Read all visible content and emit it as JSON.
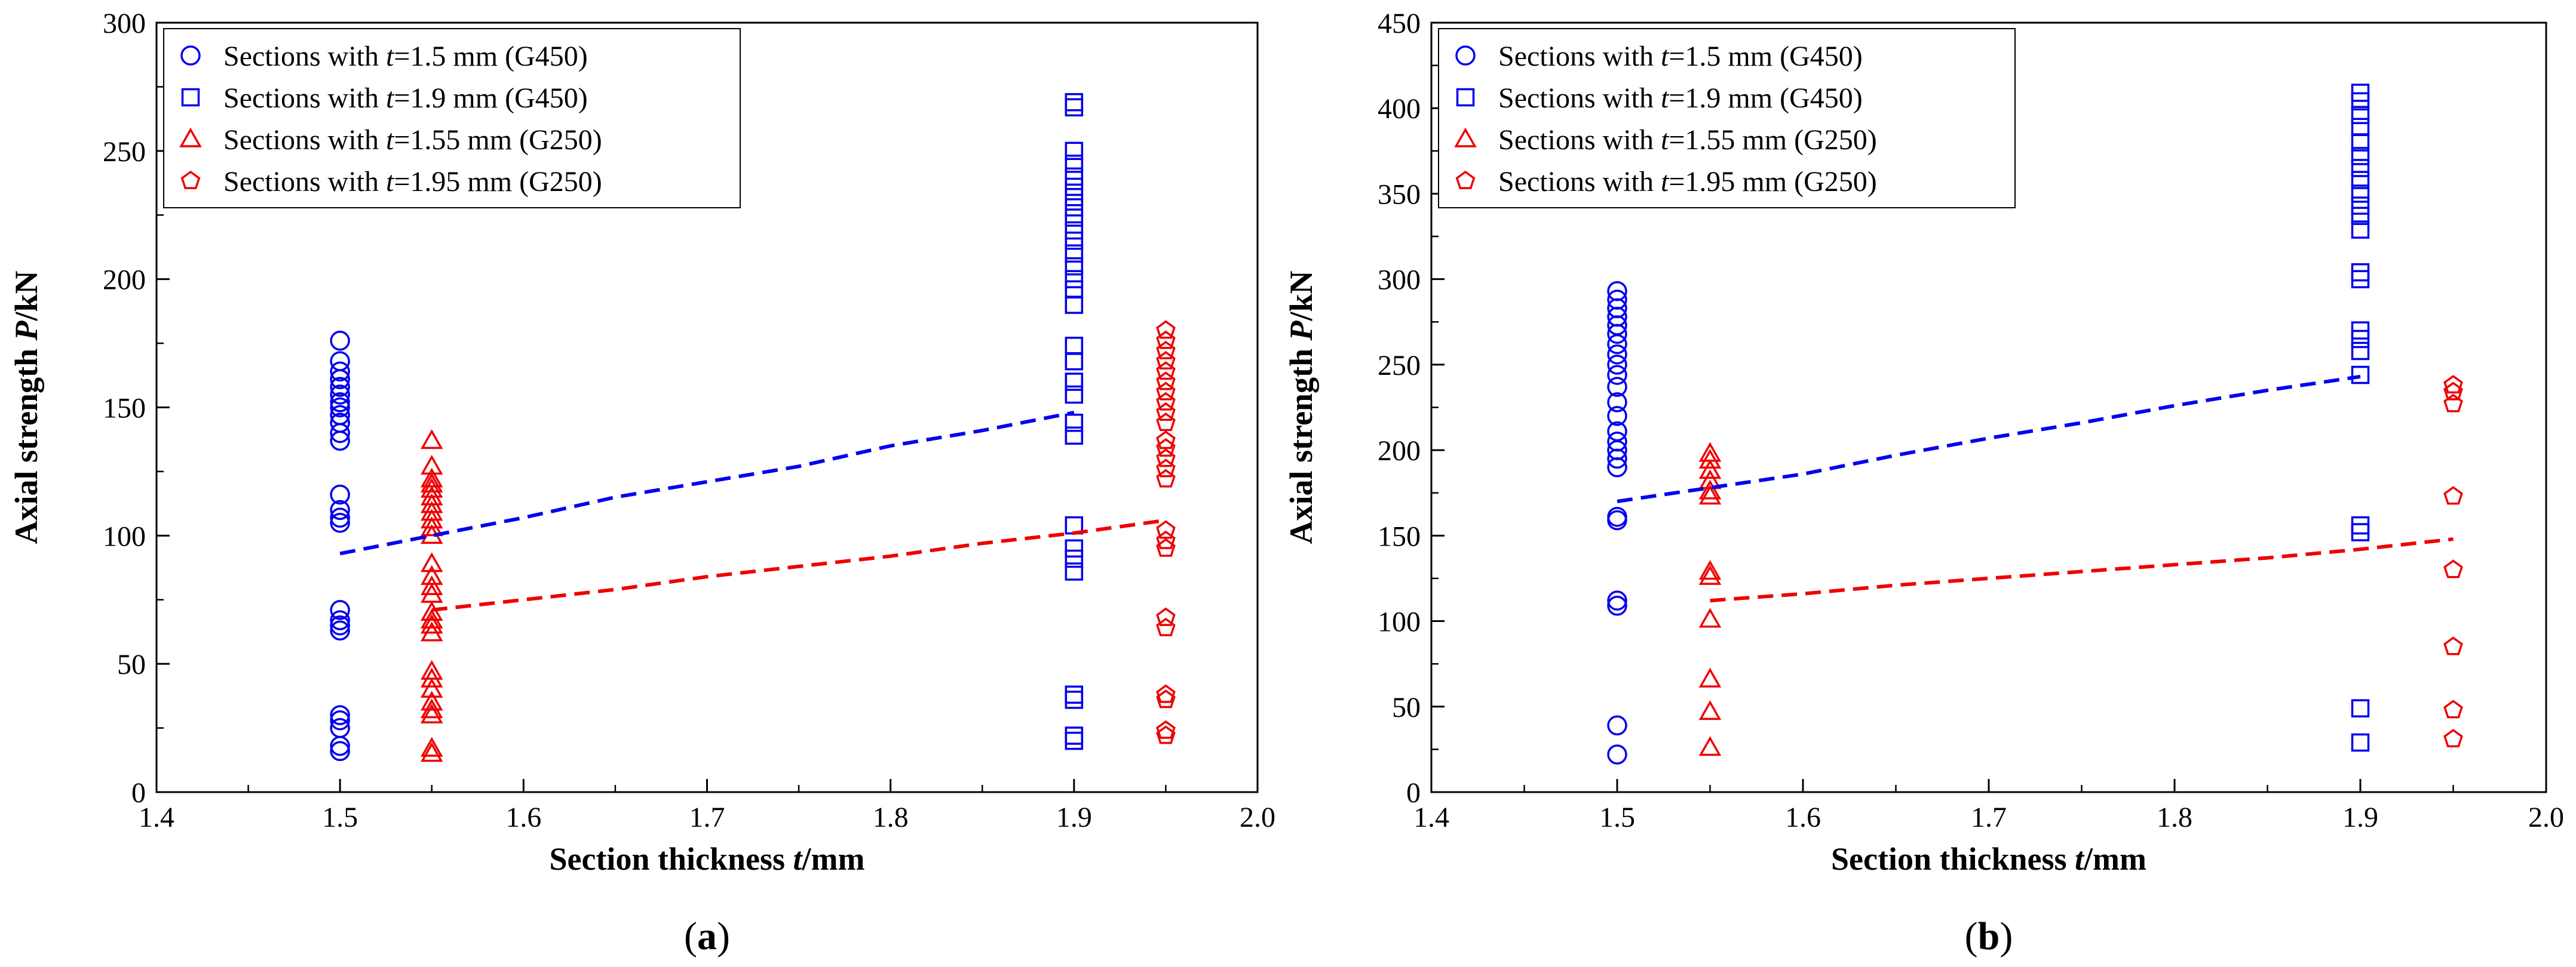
{
  "figure": {
    "colors": {
      "g450": "#0000ee",
      "g250": "#ee0000",
      "axis": "#000000"
    }
  },
  "chart_data": [
    {
      "type": "scatter",
      "panel_label": {
        "pre": "(",
        "letter": "a",
        "post": ")"
      },
      "xlabel": {
        "main": "Section thickness ",
        "var": "t",
        "unit": "/mm"
      },
      "ylabel": {
        "main": "Axial strength ",
        "var": "P",
        "unit": "/kN"
      },
      "xlim": [
        1.4,
        2.0
      ],
      "ylim": [
        0,
        300
      ],
      "xticks": [
        1.4,
        1.5,
        1.6,
        1.7,
        1.8,
        1.9,
        2.0
      ],
      "xtick_labels": [
        "1.4",
        "1.5",
        "1.6",
        "1.7",
        "1.8",
        "1.9",
        "2.0"
      ],
      "yticks": [
        0,
        50,
        100,
        150,
        200,
        250,
        300
      ],
      "ytick_labels": [
        "0",
        "50",
        "100",
        "150",
        "200",
        "250",
        "300"
      ],
      "grid": false,
      "legend_position": "top-left",
      "series": [
        {
          "name": "Sections with t=1.5 mm (G450)",
          "legend_pre": "Sections with ",
          "legend_var": "t",
          "legend_post": "=1.5 mm (G450)",
          "marker": "circle",
          "color": "#0000ee",
          "x": 1.5,
          "values": [
            176,
            168,
            164,
            161,
            158,
            155,
            152,
            150,
            147,
            144,
            140,
            137,
            116,
            110,
            107,
            105,
            71,
            67,
            65,
            63,
            30,
            28,
            25,
            18,
            16
          ]
        },
        {
          "name": "Sections with t=1.9 mm (G450)",
          "legend_pre": "Sections with ",
          "legend_var": "t",
          "legend_post": "=1.9 mm (G450)",
          "marker": "square",
          "color": "#0000ee",
          "x": 1.9,
          "values": [
            269,
            267,
            250,
            245,
            240,
            236,
            232,
            228,
            224,
            219,
            215,
            210,
            205,
            200,
            196,
            190,
            174,
            168,
            160,
            155,
            144,
            139,
            104,
            95,
            91,
            86,
            38,
            36,
            22,
            20
          ]
        },
        {
          "name": "Sections with t=1.55 mm (G250)",
          "legend_pre": "Sections with ",
          "legend_var": "t",
          "legend_post": "=1.55 mm (G250)",
          "marker": "triangle",
          "color": "#ee0000",
          "x": 1.55,
          "values": [
            137,
            127,
            122,
            120,
            118,
            115,
            112,
            109,
            106,
            103,
            100,
            89,
            84,
            80,
            77,
            70,
            67,
            65,
            62,
            47,
            44,
            40,
            35,
            32,
            30,
            17,
            15
          ]
        },
        {
          "name": "Sections with t=1.95 mm (G250)",
          "legend_pre": "Sections with ",
          "legend_var": "t",
          "legend_post": "=1.95 mm (G250)",
          "marker": "pentagon",
          "color": "#ee0000",
          "x": 1.95,
          "values": [
            180,
            176,
            172,
            168,
            164,
            160,
            156,
            152,
            148,
            144,
            137,
            134,
            130,
            126,
            122,
            102,
            98,
            95,
            68,
            64,
            38,
            36,
            24,
            22
          ]
        },
        {
          "name": "G450 trend",
          "marker": "dashed-line",
          "color": "#0000ee",
          "x": [
            1.5,
            1.55,
            1.6,
            1.65,
            1.7,
            1.75,
            1.8,
            1.85,
            1.9
          ],
          "values": [
            93,
            100,
            107,
            115,
            121,
            127,
            135,
            141,
            148
          ]
        },
        {
          "name": "G250 trend",
          "marker": "dashed-line",
          "color": "#ee0000",
          "x": [
            1.55,
            1.6,
            1.65,
            1.7,
            1.75,
            1.8,
            1.85,
            1.9,
            1.95
          ],
          "values": [
            71,
            75,
            79,
            84,
            88,
            92,
            97,
            101,
            106
          ]
        }
      ]
    },
    {
      "type": "scatter",
      "panel_label": {
        "pre": "(",
        "letter": "b",
        "post": ")"
      },
      "xlabel": {
        "main": "Section thickness ",
        "var": "t",
        "unit": "/mm"
      },
      "ylabel": {
        "main": "Axial strength ",
        "var": "P",
        "unit": "/kN"
      },
      "xlim": [
        1.4,
        2.0
      ],
      "ylim": [
        0,
        450
      ],
      "xticks": [
        1.4,
        1.5,
        1.6,
        1.7,
        1.8,
        1.9,
        2.0
      ],
      "xtick_labels": [
        "1.4",
        "1.5",
        "1.6",
        "1.7",
        "1.8",
        "1.9",
        "2.0"
      ],
      "yticks": [
        0,
        50,
        100,
        150,
        200,
        250,
        300,
        350,
        400,
        450
      ],
      "ytick_labels": [
        "0",
        "50",
        "100",
        "150",
        "200",
        "250",
        "300",
        "350",
        "400",
        "450"
      ],
      "grid": false,
      "legend_position": "top-left",
      "series": [
        {
          "name": "Sections with t=1.5 mm (G450)",
          "legend_pre": "Sections with ",
          "legend_var": "t",
          "legend_post": "=1.5 mm (G450)",
          "marker": "circle",
          "color": "#0000ee",
          "x": 1.5,
          "values": [
            293,
            288,
            283,
            278,
            273,
            268,
            262,
            256,
            250,
            244,
            237,
            228,
            220,
            211,
            205,
            200,
            195,
            190,
            161,
            159,
            112,
            109,
            39,
            22
          ]
        },
        {
          "name": "Sections with t=1.9 mm (G450)",
          "legend_pre": "Sections with ",
          "legend_var": "t",
          "legend_post": "=1.9 mm (G450)",
          "marker": "square",
          "color": "#0000ee",
          "x": 1.9,
          "values": [
            409,
            404,
            396,
            389,
            380,
            372,
            365,
            358,
            350,
            343,
            337,
            329,
            304,
            300,
            270,
            265,
            258,
            244,
            156,
            152,
            49,
            29
          ]
        },
        {
          "name": "Sections with t=1.55 mm (G250)",
          "legend_pre": "Sections with ",
          "legend_var": "t",
          "legend_post": "=1.55 mm (G250)",
          "marker": "triangle",
          "color": "#ee0000",
          "x": 1.55,
          "values": [
            198,
            194,
            188,
            182,
            176,
            173,
            129,
            126,
            101,
            66,
            47,
            26
          ]
        },
        {
          "name": "Sections with t=1.95 mm (G250)",
          "legend_pre": "Sections with ",
          "legend_var": "t",
          "legend_post": "=1.95 mm (G250)",
          "marker": "pentagon",
          "color": "#ee0000",
          "x": 1.95,
          "values": [
            238,
            234,
            227,
            173,
            130,
            85,
            48,
            31
          ]
        },
        {
          "name": "G450 trend",
          "marker": "dashed-line",
          "color": "#0000ee",
          "x": [
            1.5,
            1.55,
            1.6,
            1.65,
            1.7,
            1.75,
            1.8,
            1.85,
            1.9
          ],
          "values": [
            170,
            178,
            186,
            197,
            207,
            216,
            226,
            235,
            243
          ]
        },
        {
          "name": "G250 trend",
          "marker": "dashed-line",
          "color": "#ee0000",
          "x": [
            1.55,
            1.6,
            1.65,
            1.7,
            1.75,
            1.8,
            1.85,
            1.9,
            1.95
          ],
          "values": [
            112,
            116,
            121,
            125,
            129,
            133,
            137,
            142,
            148
          ]
        }
      ]
    }
  ]
}
